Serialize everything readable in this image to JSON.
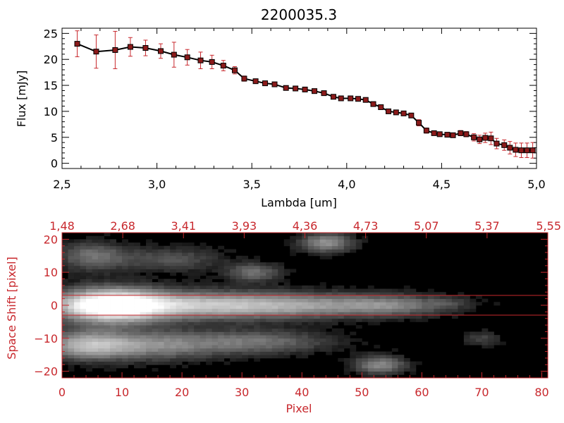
{
  "chart_data": [
    {
      "type": "line",
      "title": "2200035.3",
      "xlabel": "Lambda [um]",
      "ylabel": "Flux [mJy]",
      "xlim": [
        2.5,
        5.0
      ],
      "ylim": [
        -1,
        26
      ],
      "x_ticks": [
        "2.5",
        "3.0",
        "3.5",
        "4.0",
        "4.5",
        "5.0"
      ],
      "y_ticks": [
        "0",
        "5",
        "10",
        "15",
        "20",
        "25"
      ],
      "line_color": "#000000",
      "marker_color": "#8b1a1a",
      "errorbar_color": "#c8282d",
      "series": [
        {
          "x": [
            2.58,
            2.68,
            2.78,
            2.86,
            2.94,
            3.02,
            3.09,
            3.16,
            3.23,
            3.29,
            3.35,
            3.41,
            3.46,
            3.52,
            3.57,
            3.62,
            3.68,
            3.73,
            3.78,
            3.83,
            3.88,
            3.93,
            3.97,
            4.02,
            4.06,
            4.1,
            4.14,
            4.18,
            4.22,
            4.26,
            4.3,
            4.34,
            4.38,
            4.42,
            4.46,
            4.49,
            4.53,
            4.56,
            4.6,
            4.63,
            4.67,
            4.7,
            4.73,
            4.76,
            4.79,
            4.83,
            4.86,
            4.89,
            4.92,
            4.95,
            4.98
          ],
          "y": [
            23.0,
            21.5,
            21.8,
            22.4,
            22.2,
            21.6,
            20.9,
            20.4,
            19.8,
            19.5,
            18.8,
            17.9,
            16.3,
            15.8,
            15.4,
            15.2,
            14.5,
            14.4,
            14.2,
            13.9,
            13.5,
            12.8,
            12.5,
            12.5,
            12.4,
            12.2,
            11.4,
            10.8,
            10.0,
            9.8,
            9.6,
            9.2,
            7.8,
            6.3,
            5.8,
            5.6,
            5.5,
            5.4,
            5.8,
            5.6,
            5.0,
            4.6,
            4.9,
            4.8,
            3.8,
            3.5,
            3.0,
            2.6,
            2.5,
            2.5,
            2.5
          ],
          "yerr": [
            2.5,
            3.2,
            3.6,
            1.8,
            1.5,
            1.4,
            2.4,
            1.5,
            1.6,
            1.3,
            1.0,
            0.7,
            0.5,
            0.4,
            0.4,
            0.4,
            0.4,
            0.4,
            0.4,
            0.4,
            0.4,
            0.4,
            0.4,
            0.4,
            0.4,
            0.4,
            0.4,
            0.4,
            0.4,
            0.4,
            0.4,
            0.4,
            0.6,
            0.5,
            0.4,
            0.4,
            0.4,
            0.4,
            0.5,
            0.5,
            0.7,
            0.8,
            0.9,
            1.2,
            1.0,
            1.0,
            1.2,
            1.3,
            1.4,
            1.4,
            1.5
          ]
        }
      ]
    },
    {
      "type": "heatmap",
      "xlabel": "Pixel",
      "ylabel": "Space Shift [pixel]",
      "xlim": [
        0,
        81
      ],
      "ylim": [
        -22,
        22
      ],
      "x_ticks": [
        "0",
        "10",
        "20",
        "30",
        "40",
        "50",
        "60",
        "70",
        "80"
      ],
      "y_ticks": [
        "-20",
        "-10",
        "0",
        "10",
        "20"
      ],
      "top_axis_ticks": [
        "1.48",
        "2.68",
        "3.41",
        "3.93",
        "4.36",
        "4.73",
        "5.07",
        "5.37",
        "5.55"
      ],
      "extraction_window": [
        -3,
        3
      ],
      "axis_color": "#c8282d",
      "background_color": "#000000"
    }
  ]
}
